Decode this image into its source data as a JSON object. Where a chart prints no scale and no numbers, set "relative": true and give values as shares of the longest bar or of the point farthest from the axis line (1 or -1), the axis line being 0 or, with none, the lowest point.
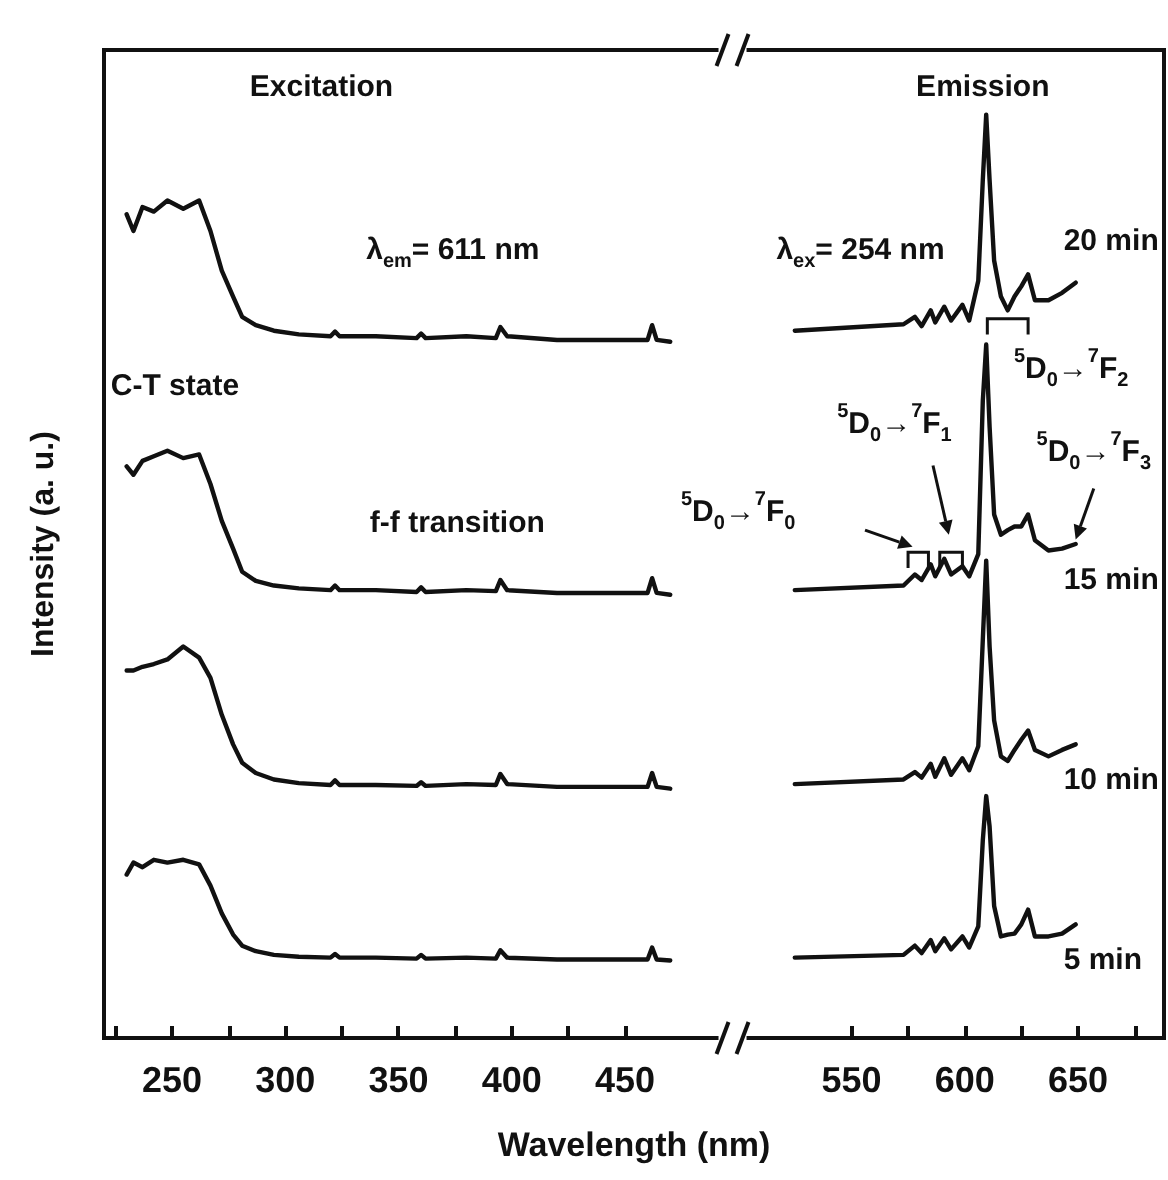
{
  "chart_data": {
    "type": "line",
    "xlabel": "Wavelength (nm)",
    "ylabel": "Intensity (a. u.)",
    "relative": true,
    "marker": "none",
    "line_style": "solid",
    "xlim": [
      220,
      688
    ],
    "xticks": [
      {
        "value": 225,
        "label": null
      },
      250,
      {
        "value": 275,
        "label": null
      },
      300,
      {
        "value": 325,
        "label": null
      },
      350,
      {
        "value": 375,
        "label": null
      },
      400,
      {
        "value": 425,
        "label": null
      },
      450,
      550,
      {
        "value": 575,
        "label": null
      },
      600,
      {
        "value": 625,
        "label": null
      },
      650,
      {
        "value": 675,
        "label": null
      }
    ],
    "annotations": [
      "Excitation",
      "Emission",
      "λ$_{em}$= 611 nm",
      "λ$_{ex}$= 254 nm",
      "C-T state",
      "f-f transition",
      "$^{5}$D$_{0}$→$^{7}$F$_{0}$",
      "$^{5}$D$_{0}$→$^{7}$F$_{1}$",
      "$^{5}$D$_{0}$→$^{7}$F$_{2}$",
      "$^{5}$D$_{0}$→$^{7}$F$_{3}$"
    ],
    "series": [
      {
        "name": "20 min",
        "color": "#111111",
        "x": [
          525,
          573,
          578,
          581,
          585,
          587,
          591,
          594,
          599,
          602,
          606,
          608,
          609.5,
          611,
          613,
          616,
          619,
          622,
          625,
          628,
          631,
          637,
          643,
          649
        ],
        "values": [
          0.766,
          0.773,
          0.781,
          0.771,
          0.788,
          0.775,
          0.792,
          0.777,
          0.794,
          0.777,
          0.82,
          0.929,
          1.0,
          0.929,
          0.842,
          0.803,
          0.788,
          0.803,
          0.814,
          0.827,
          0.799,
          0.799,
          0.807,
          0.818
        ]
      },
      {
        "name": "15 min",
        "color": "#111111",
        "x": [
          525,
          573,
          578,
          581,
          585,
          587,
          591,
          594,
          599,
          602,
          606,
          608,
          609.5,
          611,
          613,
          616,
          619,
          622,
          625,
          628,
          631,
          637,
          643,
          649
        ],
        "values": [
          0.485,
          0.49,
          0.502,
          0.496,
          0.513,
          0.5,
          0.519,
          0.502,
          0.511,
          0.5,
          0.524,
          0.69,
          0.751,
          0.662,
          0.567,
          0.545,
          0.55,
          0.554,
          0.554,
          0.567,
          0.539,
          0.528,
          0.53,
          0.535
        ]
      },
      {
        "name": "10 min",
        "color": "#111111",
        "x": [
          525,
          573,
          578,
          581,
          585,
          587,
          591,
          594,
          599,
          602,
          606,
          608,
          609.5,
          611,
          613,
          616,
          619,
          622,
          625,
          628,
          631,
          637,
          643,
          649
        ],
        "values": [
          0.275,
          0.28,
          0.288,
          0.282,
          0.297,
          0.283,
          0.303,
          0.285,
          0.303,
          0.29,
          0.316,
          0.431,
          0.517,
          0.424,
          0.344,
          0.305,
          0.3,
          0.312,
          0.323,
          0.333,
          0.312,
          0.305,
          0.312,
          0.318
        ]
      },
      {
        "name": "5 min",
        "color": "#111111",
        "x": [
          525,
          573,
          578,
          581,
          585,
          587,
          591,
          594,
          599,
          602,
          606,
          608,
          609.5,
          611,
          613,
          616,
          619,
          622,
          625,
          628,
          631,
          637,
          643,
          649
        ],
        "values": [
          0.087,
          0.09,
          0.1,
          0.092,
          0.106,
          0.094,
          0.108,
          0.096,
          0.11,
          0.098,
          0.121,
          0.214,
          0.262,
          0.229,
          0.143,
          0.11,
          0.112,
          0.113,
          0.123,
          0.139,
          0.11,
          0.11,
          0.113,
          0.123
        ]
      },
      {
        "color": "#111111",
        "x": [
          230,
          233,
          237,
          242,
          248,
          255,
          262,
          267,
          272,
          277,
          281,
          287,
          295,
          306,
          320,
          322,
          324,
          340,
          358,
          360,
          362,
          380,
          393,
          395,
          398,
          420,
          450,
          460,
          462,
          464,
          470
        ],
        "values": [
          0.892,
          0.874,
          0.9,
          0.895,
          0.907,
          0.898,
          0.907,
          0.874,
          0.831,
          0.803,
          0.781,
          0.772,
          0.766,
          0.762,
          0.76,
          0.765,
          0.76,
          0.76,
          0.758,
          0.763,
          0.758,
          0.76,
          0.758,
          0.77,
          0.76,
          0.756,
          0.756,
          0.756,
          0.772,
          0.756,
          0.754
        ]
      },
      {
        "color": "#111111",
        "x": [
          230,
          233,
          237,
          242,
          248,
          255,
          262,
          267,
          272,
          277,
          281,
          287,
          295,
          306,
          320,
          322,
          324,
          340,
          358,
          360,
          362,
          380,
          393,
          395,
          398,
          420,
          450,
          460,
          462,
          464,
          470
        ],
        "values": [
          0.619,
          0.61,
          0.625,
          0.63,
          0.636,
          0.628,
          0.632,
          0.6,
          0.56,
          0.53,
          0.505,
          0.495,
          0.49,
          0.487,
          0.485,
          0.49,
          0.485,
          0.485,
          0.483,
          0.488,
          0.483,
          0.485,
          0.484,
          0.496,
          0.485,
          0.482,
          0.482,
          0.482,
          0.498,
          0.482,
          0.48
        ]
      },
      {
        "color": "#111111",
        "x": [
          230,
          233,
          237,
          242,
          248,
          255,
          262,
          267,
          272,
          277,
          281,
          287,
          295,
          306,
          320,
          322,
          324,
          340,
          358,
          360,
          362,
          380,
          393,
          395,
          398,
          420,
          450,
          460,
          462,
          464,
          470
        ],
        "values": [
          0.398,
          0.398,
          0.402,
          0.405,
          0.41,
          0.424,
          0.412,
          0.39,
          0.35,
          0.318,
          0.298,
          0.287,
          0.28,
          0.276,
          0.274,
          0.279,
          0.274,
          0.274,
          0.273,
          0.277,
          0.273,
          0.275,
          0.274,
          0.286,
          0.275,
          0.272,
          0.272,
          0.272,
          0.287,
          0.272,
          0.27
        ]
      },
      {
        "color": "#111111",
        "x": [
          230,
          233,
          237,
          242,
          248,
          255,
          262,
          267,
          272,
          277,
          281,
          287,
          295,
          306,
          320,
          322,
          324,
          340,
          358,
          360,
          362,
          380,
          393,
          395,
          398,
          420,
          450,
          460,
          462,
          464,
          470
        ],
        "values": [
          0.177,
          0.19,
          0.185,
          0.193,
          0.19,
          0.193,
          0.188,
          0.165,
          0.135,
          0.112,
          0.1,
          0.094,
          0.09,
          0.088,
          0.087,
          0.091,
          0.087,
          0.087,
          0.086,
          0.09,
          0.086,
          0.087,
          0.086,
          0.095,
          0.087,
          0.085,
          0.085,
          0.085,
          0.098,
          0.085,
          0.084
        ]
      }
    ]
  }
}
